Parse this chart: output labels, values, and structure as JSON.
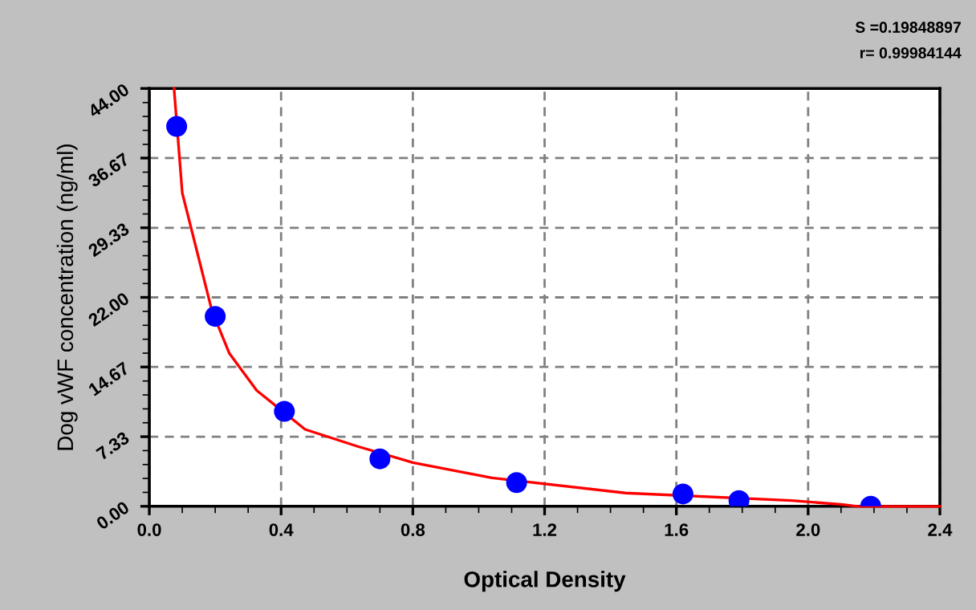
{
  "chart_data": {
    "type": "scatter",
    "xlabel": "Optical Density",
    "ylabel": "Dog vWF concentration (ng/ml)",
    "annotations": [
      "S =0.19848897",
      "r= 0.99984144"
    ],
    "series": [
      {
        "color": "#0000ff",
        "marker": "circle",
        "x": [
          0.083,
          0.2,
          0.41,
          0.7,
          1.115,
          1.62,
          1.79,
          2.19
        ],
        "values": [
          40,
          20,
          10,
          5,
          2.5,
          1.3,
          0.6,
          0
        ]
      },
      {
        "type": "line",
        "color": "#ff0000",
        "line_style": "solid",
        "x": [
          0.075,
          0.1,
          0.19,
          0.243,
          0.326,
          0.473,
          0.633,
          0.8,
          1.04,
          1.446,
          1.95,
          2.1,
          2.15,
          2.4
        ],
        "values": [
          44,
          33,
          20.6,
          16.1,
          12.2,
          8.1,
          6.3,
          4.6,
          3.0,
          1.4,
          0.6,
          0.2,
          0,
          0
        ]
      }
    ],
    "xlim": [
      0,
      2.4
    ],
    "xticks": [
      {
        "value": 0,
        "label": "0.0"
      },
      0.4,
      0.8,
      1.2,
      1.6,
      {
        "value": 2,
        "label": "2.0"
      },
      2.4
    ],
    "ylim": [
      0,
      44
    ],
    "yticks": [
      {
        "value": 0,
        "label": "0.00"
      },
      7.33,
      14.67,
      {
        "value": 22,
        "label": "22.00"
      },
      29.33,
      36.67,
      {
        "value": 44,
        "label": "44.00"
      }
    ],
    "grid": true
  }
}
